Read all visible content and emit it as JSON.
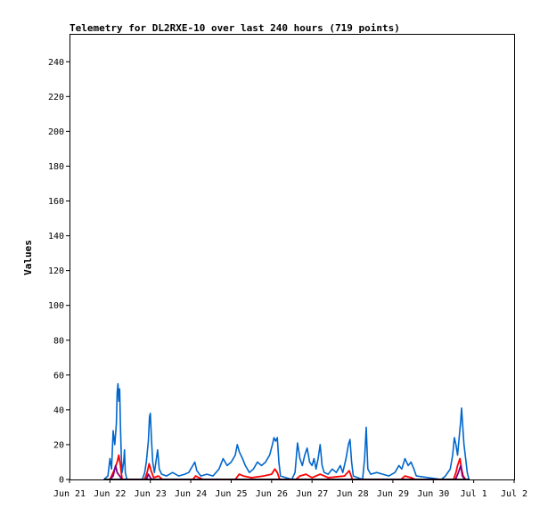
{
  "chart_data": {
    "type": "line",
    "title": "Telemetry for DL2RXE-10 over last 240 hours (719 points)",
    "xlabel": "",
    "ylabel": "Values",
    "x_ticks": [
      "Jun 21",
      "Jun 22",
      "Jun 23",
      "Jun 24",
      "Jun 25",
      "Jun 26",
      "Jun 27",
      "Jun 28",
      "Jun 29",
      "Jun 30",
      "Jul 1",
      "Jul 2"
    ],
    "y_ticks": [
      0,
      20,
      40,
      60,
      80,
      100,
      120,
      140,
      160,
      180,
      200,
      220,
      240
    ],
    "xlim": [
      0,
      11
    ],
    "ylim": [
      0,
      256
    ],
    "grid": false,
    "legend": "none",
    "series": [
      {
        "color": "#0066cc",
        "points": [
          [
            0.85,
            0
          ],
          [
            0.95,
            2
          ],
          [
            1.0,
            12
          ],
          [
            1.04,
            6
          ],
          [
            1.08,
            28
          ],
          [
            1.12,
            20
          ],
          [
            1.16,
            32
          ],
          [
            1.18,
            50
          ],
          [
            1.2,
            55
          ],
          [
            1.22,
            45
          ],
          [
            1.24,
            52
          ],
          [
            1.26,
            30
          ],
          [
            1.28,
            14
          ],
          [
            1.3,
            4
          ],
          [
            1.34,
            10
          ],
          [
            1.36,
            17
          ],
          [
            1.38,
            4
          ],
          [
            1.42,
            0
          ],
          [
            1.8,
            0
          ],
          [
            1.86,
            4
          ],
          [
            1.9,
            10
          ],
          [
            1.95,
            22
          ],
          [
            1.98,
            36
          ],
          [
            2.0,
            38
          ],
          [
            2.03,
            22
          ],
          [
            2.06,
            10
          ],
          [
            2.1,
            4
          ],
          [
            2.15,
            12
          ],
          [
            2.18,
            17
          ],
          [
            2.22,
            6
          ],
          [
            2.28,
            3
          ],
          [
            2.4,
            2
          ],
          [
            2.55,
            4
          ],
          [
            2.7,
            2
          ],
          [
            2.85,
            3
          ],
          [
            2.95,
            4
          ],
          [
            3.05,
            8
          ],
          [
            3.1,
            10
          ],
          [
            3.15,
            5
          ],
          [
            3.25,
            2
          ],
          [
            3.4,
            3
          ],
          [
            3.55,
            2
          ],
          [
            3.7,
            6
          ],
          [
            3.8,
            12
          ],
          [
            3.9,
            8
          ],
          [
            4.0,
            10
          ],
          [
            4.1,
            14
          ],
          [
            4.15,
            20
          ],
          [
            4.2,
            16
          ],
          [
            4.28,
            12
          ],
          [
            4.35,
            8
          ],
          [
            4.45,
            4
          ],
          [
            4.55,
            6
          ],
          [
            4.65,
            10
          ],
          [
            4.75,
            8
          ],
          [
            4.85,
            10
          ],
          [
            4.95,
            14
          ],
          [
            5.02,
            20
          ],
          [
            5.06,
            24
          ],
          [
            5.1,
            22
          ],
          [
            5.14,
            24
          ],
          [
            5.18,
            10
          ],
          [
            5.22,
            2
          ],
          [
            5.5,
            0
          ],
          [
            5.58,
            4
          ],
          [
            5.64,
            21
          ],
          [
            5.7,
            12
          ],
          [
            5.76,
            8
          ],
          [
            5.82,
            14
          ],
          [
            5.88,
            18
          ],
          [
            5.94,
            10
          ],
          [
            6.0,
            8
          ],
          [
            6.05,
            12
          ],
          [
            6.1,
            6
          ],
          [
            6.15,
            12
          ],
          [
            6.2,
            20
          ],
          [
            6.25,
            8
          ],
          [
            6.3,
            4
          ],
          [
            6.4,
            3
          ],
          [
            6.5,
            6
          ],
          [
            6.6,
            4
          ],
          [
            6.7,
            8
          ],
          [
            6.76,
            4
          ],
          [
            6.84,
            12
          ],
          [
            6.9,
            20
          ],
          [
            6.94,
            23
          ],
          [
            6.98,
            10
          ],
          [
            7.02,
            2
          ],
          [
            7.25,
            0
          ],
          [
            7.3,
            12
          ],
          [
            7.34,
            30
          ],
          [
            7.38,
            6
          ],
          [
            7.45,
            3
          ],
          [
            7.6,
            4
          ],
          [
            7.75,
            3
          ],
          [
            7.9,
            2
          ],
          [
            8.05,
            4
          ],
          [
            8.15,
            8
          ],
          [
            8.22,
            6
          ],
          [
            8.3,
            12
          ],
          [
            8.38,
            8
          ],
          [
            8.45,
            10
          ],
          [
            8.52,
            6
          ],
          [
            8.58,
            2
          ],
          [
            9.2,
            0
          ],
          [
            9.3,
            2
          ],
          [
            9.42,
            6
          ],
          [
            9.48,
            14
          ],
          [
            9.52,
            24
          ],
          [
            9.56,
            20
          ],
          [
            9.6,
            14
          ],
          [
            9.64,
            24
          ],
          [
            9.68,
            34
          ],
          [
            9.7,
            41
          ],
          [
            9.73,
            30
          ],
          [
            9.76,
            20
          ],
          [
            9.8,
            12
          ],
          [
            9.84,
            4
          ],
          [
            9.88,
            0
          ]
        ]
      },
      {
        "color": "#ff0000",
        "points": [
          [
            1.0,
            0
          ],
          [
            1.06,
            3
          ],
          [
            1.12,
            6
          ],
          [
            1.18,
            10
          ],
          [
            1.22,
            14
          ],
          [
            1.26,
            8
          ],
          [
            1.3,
            0
          ],
          [
            1.86,
            0
          ],
          [
            1.92,
            4
          ],
          [
            1.97,
            9
          ],
          [
            2.02,
            5
          ],
          [
            2.08,
            1
          ],
          [
            2.2,
            2
          ],
          [
            2.3,
            0
          ],
          [
            3.05,
            0
          ],
          [
            3.12,
            2
          ],
          [
            3.2,
            1
          ],
          [
            3.3,
            0
          ],
          [
            4.1,
            0
          ],
          [
            4.2,
            3
          ],
          [
            4.3,
            2
          ],
          [
            4.5,
            1
          ],
          [
            4.8,
            2
          ],
          [
            5.0,
            3
          ],
          [
            5.08,
            6
          ],
          [
            5.14,
            4
          ],
          [
            5.2,
            0
          ],
          [
            5.6,
            0
          ],
          [
            5.7,
            2
          ],
          [
            5.85,
            3
          ],
          [
            6.0,
            1
          ],
          [
            6.2,
            3
          ],
          [
            6.4,
            1
          ],
          [
            6.8,
            2
          ],
          [
            6.92,
            5
          ],
          [
            7.0,
            0
          ],
          [
            8.2,
            0
          ],
          [
            8.3,
            2
          ],
          [
            8.45,
            1
          ],
          [
            8.55,
            0
          ],
          [
            9.5,
            0
          ],
          [
            9.56,
            4
          ],
          [
            9.6,
            8
          ],
          [
            9.66,
            12
          ],
          [
            9.7,
            6
          ],
          [
            9.74,
            2
          ],
          [
            9.8,
            0
          ]
        ]
      },
      {
        "color": "#800080",
        "points": [
          [
            1.0,
            0
          ],
          [
            1.08,
            2
          ],
          [
            1.14,
            8
          ],
          [
            1.18,
            4
          ],
          [
            1.24,
            2
          ],
          [
            1.3,
            0
          ],
          [
            1.9,
            0
          ],
          [
            1.95,
            3
          ],
          [
            2.0,
            1
          ],
          [
            2.05,
            0
          ],
          [
            9.55,
            0
          ],
          [
            9.62,
            4
          ],
          [
            9.68,
            8
          ],
          [
            9.72,
            2
          ],
          [
            9.78,
            0
          ]
        ]
      },
      {
        "color": "#000000",
        "points": [
          [
            0.85,
            0
          ],
          [
            9.9,
            0
          ]
        ]
      }
    ]
  }
}
